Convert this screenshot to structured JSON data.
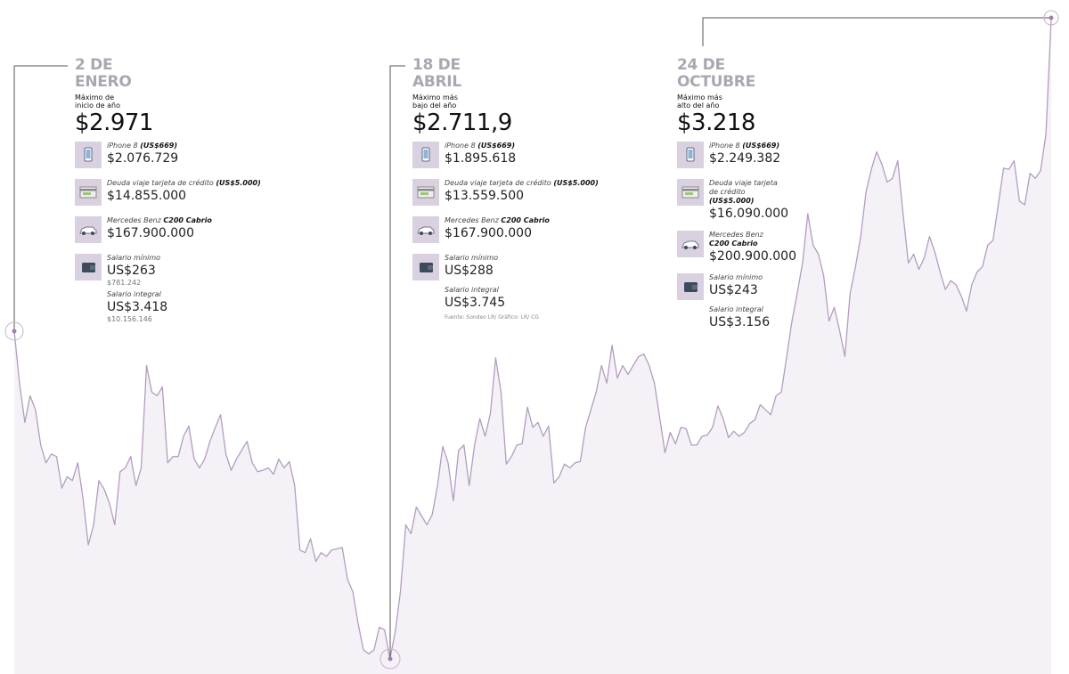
{
  "chart_data": {
    "type": "line",
    "color": "#b59cc0",
    "fill": "#f4f2f7",
    "ylim": [
      2700,
      3233
    ],
    "values": [
      2971,
      2930,
      2899,
      2920,
      2909,
      2881,
      2867,
      2874,
      2872,
      2847,
      2856,
      2853,
      2867,
      2839,
      2802,
      2818,
      2853,
      2846,
      2835,
      2818,
      2860,
      2863,
      2872,
      2849,
      2863,
      2944,
      2923,
      2920,
      2927,
      2867,
      2872,
      2872,
      2888,
      2896,
      2870,
      2863,
      2870,
      2884,
      2895,
      2905,
      2874,
      2861,
      2870,
      2877,
      2884,
      2867,
      2860,
      2861,
      2863,
      2858,
      2870,
      2863,
      2868,
      2849,
      2798,
      2796,
      2807,
      2789,
      2796,
      2793,
      2798,
      2799,
      2800,
      2775,
      2765,
      2740,
      2719,
      2716,
      2719,
      2737,
      2735,
      2711.9,
      2733,
      2765,
      2818,
      2811,
      2832,
      2825,
      2818,
      2826,
      2849,
      2880,
      2867,
      2837,
      2877,
      2881,
      2849,
      2881,
      2902,
      2888,
      2906,
      2950,
      2923,
      2866,
      2872,
      2881,
      2882,
      2911,
      2895,
      2899,
      2888,
      2896,
      2851,
      2856,
      2866,
      2863,
      2867,
      2868,
      2895,
      2909,
      2923,
      2944,
      2930,
      2960,
      2934,
      2944,
      2937,
      2944,
      2951,
      2953,
      2944,
      2930,
      2903,
      2875,
      2891,
      2882,
      2895,
      2894,
      2881,
      2881,
      2888,
      2889,
      2895,
      2912,
      2902,
      2887,
      2892,
      2888,
      2891,
      2898,
      2901,
      2913,
      2909,
      2905,
      2920,
      2923,
      2951,
      2979,
      3001,
      3025,
      3064,
      3039,
      3032,
      3015,
      2979,
      2990,
      2972,
      2951,
      3001,
      3022,
      3046,
      3081,
      3099,
      3113,
      3103,
      3089,
      3092,
      3106,
      3064,
      3025,
      3032,
      3020,
      3029,
      3046,
      3034,
      3018,
      3004,
      3011,
      3008,
      2999,
      2987,
      3008,
      3018,
      3022,
      3039,
      3043,
      3071,
      3100,
      3099,
      3106,
      3074,
      3071,
      3096,
      3092,
      3098,
      3127,
      3218
    ]
  },
  "annotations": [
    {
      "date": [
        "2 DE",
        "ENERO"
      ],
      "label": [
        "Máximo de",
        "inicio de año"
      ],
      "value": "$2.971",
      "items": [
        {
          "name": "iPhone 8",
          "name_bold": "(US$669)",
          "amount": "$2.076.729"
        },
        {
          "name": "Deuda viaje tarjeta de crédito",
          "name_bold": "(US$5.000)",
          "amount": "$14.855.000"
        },
        {
          "name": "Mercedes Benz",
          "name_bold": "C200 Cabrio",
          "amount": "$167.900.000"
        },
        {
          "name": "Salario mínimo",
          "amount": "US$263",
          "sub": "$781.242"
        },
        {
          "name": "Salario integral",
          "amount": "US$3.418",
          "sub": "$10.156.146"
        }
      ]
    },
    {
      "date": [
        "18 DE",
        "ABRIL"
      ],
      "label": [
        "Máximo más",
        "bajo del año"
      ],
      "value": "$2.711,9",
      "items": [
        {
          "name": "iPhone 8",
          "name_bold": "(US$669)",
          "amount": "$1.895.618"
        },
        {
          "name": "Deuda viaje tarjeta de crédito",
          "name_bold": "(US$5.000)",
          "amount": "$13.559.500"
        },
        {
          "name": "Mercedes Benz",
          "name_bold": "C200 Cabrio",
          "amount": "$167.900.000"
        },
        {
          "name": "Salario mínimo",
          "amount": "US$288"
        },
        {
          "name": "Salario integral",
          "amount": "US$3.745"
        }
      ],
      "source": "Fuente: Sondeo LR/ Gráfico: LR/ CG"
    },
    {
      "date": [
        "24 DE",
        "OCTUBRE"
      ],
      "label": [
        "Máximo más",
        "alto del año"
      ],
      "value": "$3.218",
      "items": [
        {
          "name": "iPhone 8",
          "name_bold": "(US$669)",
          "amount": "$2.249.382"
        },
        {
          "name": "Deuda viaje tarjeta de crédito",
          "name_bold": "(US$5.000)",
          "amount": "$16.090.000"
        },
        {
          "name": "Mercedes Benz",
          "name_bold": "C200 Cabrio",
          "amount": "$200.900.000"
        },
        {
          "name": "Salario mínimo",
          "amount": "US$243"
        },
        {
          "name": "Salario integral",
          "amount": "US$3.156"
        }
      ]
    }
  ]
}
